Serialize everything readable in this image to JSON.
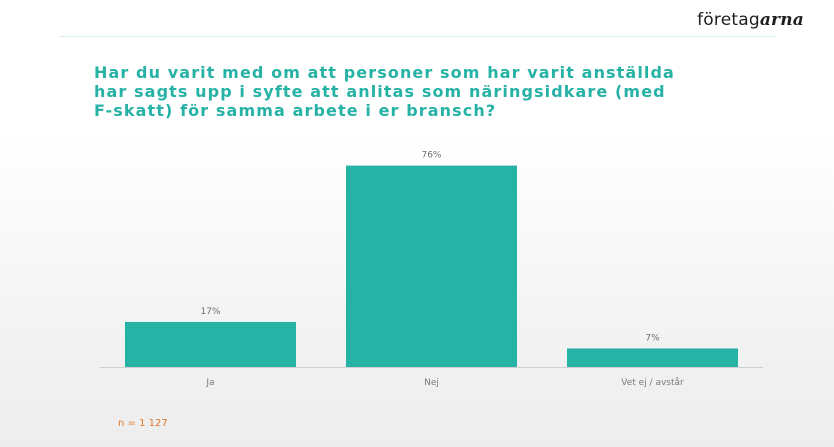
{
  "logo": {
    "text_regular": "företag",
    "text_italic": "arna"
  },
  "chart_data": {
    "type": "bar",
    "title_lines": [
      "Har du varit med om att personer som har varit anställda",
      "har sagts upp i syfte att anlitas som näringsidkare (med",
      "F-skatt) för samma arbete i er bransch?"
    ],
    "categories": [
      "Ja",
      "Nej",
      "Vet ej / avstår"
    ],
    "values": [
      17,
      76,
      7
    ],
    "data_labels": [
      "17%",
      "76%",
      "7%"
    ],
    "unit": "%",
    "ylim": [
      0,
      80
    ],
    "grid": false,
    "legend": "none",
    "bar_color": "#26b2a5",
    "note": "n = 1 127"
  }
}
